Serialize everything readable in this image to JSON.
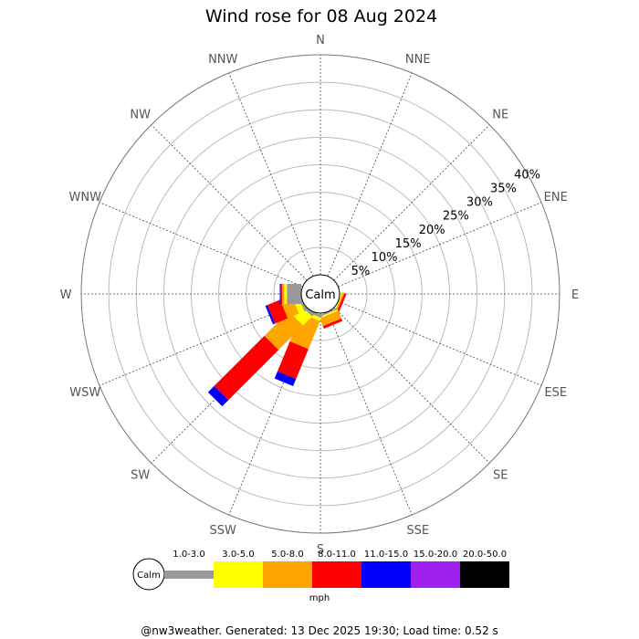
{
  "page": {
    "footer": "@nw3weather. Generated: 13 Dec 2025 19:30; Load time: 0.52 s"
  },
  "chart_data": {
    "type": "wind-rose",
    "title": "Wind rose for 08 Aug 2024",
    "calm_label": "Calm",
    "unit": "mph",
    "directions": [
      "N",
      "NNE",
      "NE",
      "ENE",
      "E",
      "ESE",
      "SE",
      "SSE",
      "S",
      "SSW",
      "SW",
      "WSW",
      "W",
      "WNW",
      "NW",
      "NNW"
    ],
    "ring_labels": [
      "5%",
      "10%",
      "15%",
      "20%",
      "25%",
      "30%",
      "35%",
      "40%"
    ],
    "max_percent": 40,
    "speed_bins": [
      {
        "label": "1.0-3.0",
        "color": "#999999"
      },
      {
        "label": "3.0-5.0",
        "color": "#ffff00"
      },
      {
        "label": "5.0-8.0",
        "color": "#ffa500"
      },
      {
        "label": "8.0-11.0",
        "color": "#ff0000"
      },
      {
        "label": "11.0-15.0",
        "color": "#0000ff"
      },
      {
        "label": "15.0-20.0",
        "color": "#a020f0"
      },
      {
        "label": "20.0-50.0",
        "color": "#000000"
      }
    ],
    "series": [
      {
        "direction": "N",
        "values": [
          0,
          0,
          0,
          0,
          0,
          0,
          0
        ]
      },
      {
        "direction": "NNE",
        "values": [
          0,
          0,
          0,
          0,
          0,
          0,
          0
        ]
      },
      {
        "direction": "NE",
        "values": [
          0,
          0,
          0,
          0,
          0,
          0,
          0
        ]
      },
      {
        "direction": "ENE",
        "values": [
          0,
          0,
          0,
          0,
          0,
          0,
          0
        ]
      },
      {
        "direction": "E",
        "values": [
          0,
          0,
          0,
          0,
          0,
          0,
          0
        ]
      },
      {
        "direction": "ESE",
        "values": [
          0,
          0.2,
          0.3,
          0.4,
          0,
          0,
          0
        ]
      },
      {
        "direction": "SE",
        "values": [
          0,
          0,
          0,
          0,
          0,
          0,
          0
        ]
      },
      {
        "direction": "SSE",
        "values": [
          0.3,
          0.3,
          1.5,
          0.5,
          0,
          0,
          0
        ]
      },
      {
        "direction": "S",
        "values": [
          0,
          0,
          0,
          0,
          0,
          0,
          0
        ]
      },
      {
        "direction": "SSW",
        "values": [
          0.5,
          0.6,
          5.5,
          5.9,
          1.4,
          0,
          0
        ]
      },
      {
        "direction": "SW",
        "values": [
          0.5,
          2.3,
          6.3,
          12.9,
          1.6,
          0,
          0
        ]
      },
      {
        "direction": "WSW",
        "values": [
          0.4,
          1.1,
          2.2,
          2.5,
          0.4,
          0,
          0
        ]
      },
      {
        "direction": "W",
        "values": [
          2.6,
          0.5,
          0.4,
          0.2,
          0.2,
          0,
          0
        ]
      },
      {
        "direction": "WNW",
        "values": [
          0,
          0,
          0,
          0,
          0,
          0,
          0
        ]
      },
      {
        "direction": "NW",
        "values": [
          0,
          0,
          0,
          0,
          0,
          0,
          0
        ]
      },
      {
        "direction": "NNW",
        "values": [
          0,
          0,
          0,
          0,
          0,
          0,
          0
        ]
      }
    ]
  }
}
